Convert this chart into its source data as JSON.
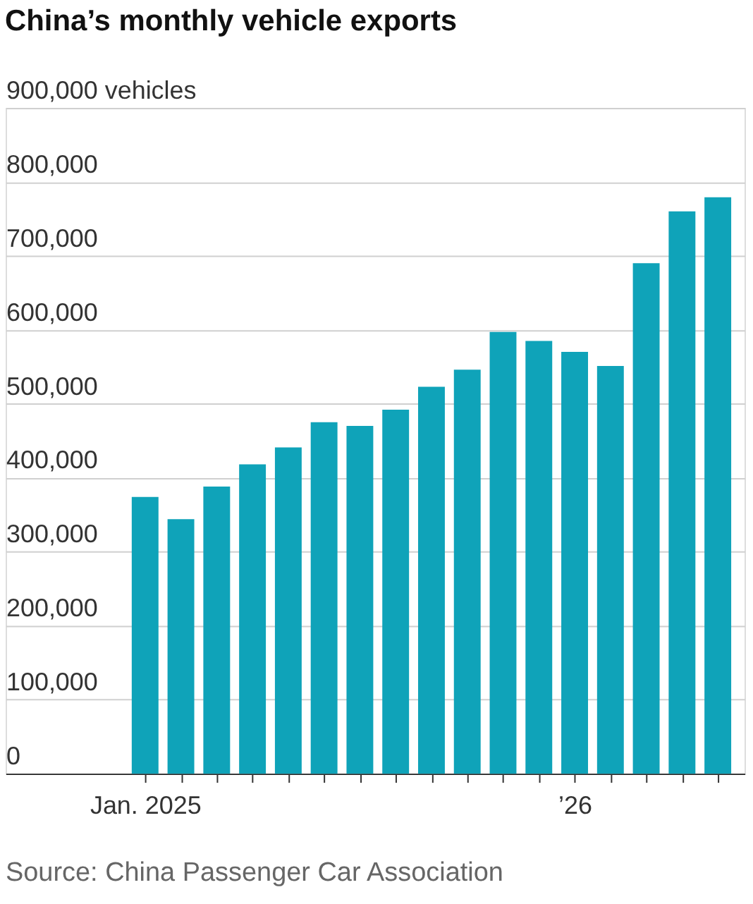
{
  "chart_data": {
    "type": "bar",
    "title": "China’s monthly vehicle exports",
    "categories": [
      "Jan. 2025",
      null,
      null,
      null,
      null,
      null,
      null,
      null,
      null,
      null,
      null,
      null,
      "’26",
      null,
      null,
      null,
      null
    ],
    "values": [
      374000,
      344000,
      388000,
      418000,
      441000,
      475000,
      470000,
      492000,
      523000,
      546000,
      597000,
      585000,
      570000,
      551000,
      690000,
      760000,
      779000
    ],
    "color": "#0fa3b9",
    "ylim": [
      0,
      900000
    ],
    "yticks": [
      0,
      {
        "value": 100000,
        "label": "100,000"
      },
      {
        "value": 200000,
        "label": "200,000"
      },
      {
        "value": 300000,
        "label": "300,000"
      },
      {
        "value": 400000,
        "label": "400,000"
      },
      {
        "value": 500000,
        "label": "500,000"
      },
      {
        "value": 600000,
        "label": "600,000"
      },
      {
        "value": 700000,
        "label": "700,000"
      },
      {
        "value": 800000,
        "label": "800,000"
      },
      {
        "value": 900000,
        "label": "900,000 vehicles"
      }
    ],
    "grid": "y",
    "annotations": [
      "Source: China Passenger Car Association"
    ]
  }
}
